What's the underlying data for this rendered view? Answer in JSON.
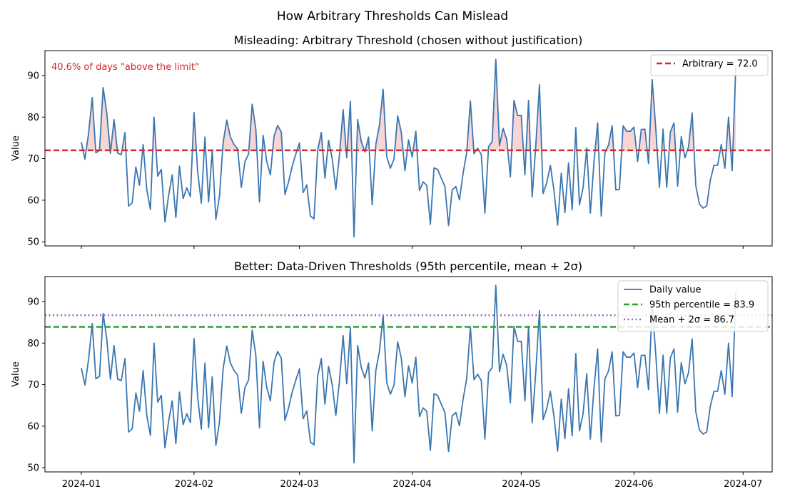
{
  "figure": {
    "suptitle": "How Arbitrary Thresholds Can Mislead"
  },
  "chart_data": [
    {
      "type": "line",
      "title": "Misleading: Arbitrary Threshold (chosen without justification)",
      "xlabel": "",
      "ylabel": "Value",
      "ylim": [
        49,
        96
      ],
      "yticks": [
        50,
        60,
        70,
        80,
        90
      ],
      "grid": false,
      "legend_position": "top-right",
      "annotation": "40.6% of days \"above the limit\"",
      "annotation_color": "#d62728",
      "threshold": {
        "name": "Arbitrary = 72.0",
        "value": 72.0,
        "style": "dashed",
        "color": "#d62728"
      },
      "shade_above_threshold": {
        "color": "#f4c7c7"
      }
    },
    {
      "type": "line",
      "title": "Better: Data-Driven Thresholds (95th percentile, mean + 2σ)",
      "xlabel": "",
      "ylabel": "Value",
      "ylim": [
        49,
        96
      ],
      "yticks": [
        50,
        60,
        70,
        80,
        90
      ],
      "grid": false,
      "legend_position": "top-right",
      "series_name": "Daily value",
      "thresholds": [
        {
          "name": "95th percentile = 83.9",
          "value": 83.9,
          "style": "dashed",
          "color": "#2ca02c"
        },
        {
          "name": "Mean + 2σ = 86.7",
          "value": 86.7,
          "style": "dotted",
          "color": "#9467bd"
        }
      ]
    }
  ],
  "series": {
    "color": "#3a76b0",
    "x_start": "2024-01-01",
    "x_end": "2024-06-29",
    "xlim": [
      "2023-12-22",
      "2024-07-09"
    ],
    "xticks": [
      "2024-01",
      "2024-02",
      "2024-03",
      "2024-04",
      "2024-05",
      "2024-06",
      "2024-07"
    ],
    "values": [
      74.0,
      69.9,
      76.1,
      84.7,
      71.4,
      72.0,
      87.1,
      81.0,
      71.3,
      79.4,
      71.3,
      71.0,
      76.3,
      58.6,
      59.4,
      68.0,
      63.6,
      73.4,
      62.6,
      57.8,
      80.0,
      65.8,
      67.4,
      54.8,
      61.1,
      66.1,
      55.8,
      68.2,
      60.4,
      63.0,
      60.9,
      81.1,
      66.9,
      59.3,
      75.2,
      59.6,
      71.9,
      55.4,
      61.0,
      73.8,
      79.3,
      75.2,
      73.4,
      72.3,
      63.1,
      69.3,
      71.1,
      83.1,
      77.0,
      59.6,
      75.6,
      69.3,
      66.1,
      75.4,
      78.0,
      76.4,
      61.4,
      64.4,
      68.2,
      71.1,
      73.8,
      61.8,
      63.7,
      56.2,
      55.5,
      72.0,
      76.3,
      65.3,
      74.4,
      70.0,
      62.6,
      70.9,
      81.8,
      70.2,
      83.8,
      51.2,
      79.4,
      74.1,
      71.6,
      75.2,
      58.9,
      73.4,
      78.1,
      86.7,
      70.5,
      67.7,
      69.9,
      80.3,
      76.4,
      67.1,
      74.5,
      70.4,
      76.6,
      62.3,
      64.4,
      63.6,
      54.2,
      67.8,
      67.4,
      65.3,
      63.3,
      53.9,
      62.5,
      63.3,
      60.1,
      66.5,
      71.5,
      83.9,
      71.2,
      72.5,
      71.0,
      56.9,
      72.9,
      74.1,
      93.9,
      73.1,
      77.3,
      74.6,
      65.6,
      84.0,
      80.4,
      80.4,
      66.1,
      84.0,
      60.8,
      73.2,
      87.8,
      61.6,
      64.2,
      68.4,
      62.3,
      54.0,
      66.5,
      57.0,
      69.0,
      57.7,
      77.5,
      58.9,
      63.0,
      72.6,
      56.9,
      69.2,
      78.6,
      56.2,
      71.4,
      73.3,
      77.9,
      62.5,
      62.6,
      77.9,
      76.6,
      76.6,
      77.6,
      69.3,
      77.0,
      77.1,
      68.8,
      89.0,
      77.2,
      63.1,
      77.1,
      63.1,
      76.4,
      78.6,
      63.4,
      75.3,
      70.2,
      72.9,
      81.0,
      63.5,
      59.1,
      58.1,
      58.6,
      64.8,
      68.4,
      68.4,
      73.4,
      67.7,
      80.0,
      67.1,
      92.2
    ]
  }
}
